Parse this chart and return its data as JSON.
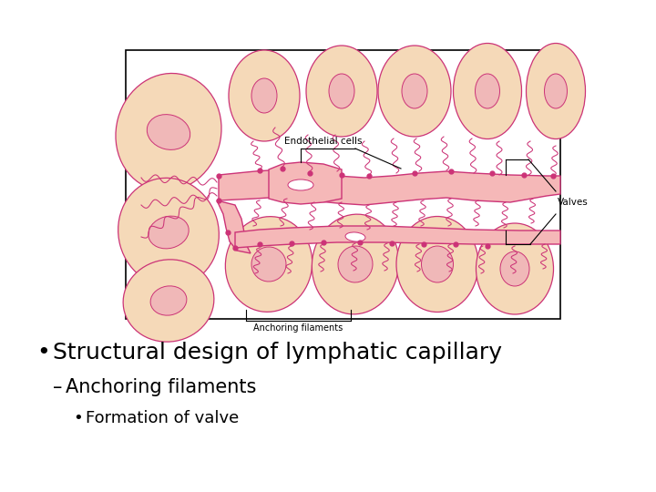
{
  "bg_color": "#ffffff",
  "cell_fill": "#f5d9b8",
  "cell_edge": "#cc3377",
  "nucleus_fill": "#f0b8b8",
  "nucleus_edge": "#cc3377",
  "capillary_fill": "#f5b8b8",
  "capillary_edge": "#cc3377",
  "filament_color": "#cc3377",
  "dot_color": "#cc3377",
  "label_endothelial": "Endothelial cells",
  "label_valves": "Valves",
  "label_anchoring": "Anchoring filaments",
  "bullet1": "Structural design of lymphatic capillary",
  "bullet2": "Anchoring filaments",
  "bullet3": "Formation of valve",
  "title_fontsize": 18,
  "sub_fontsize": 15,
  "sub2_fontsize": 13
}
